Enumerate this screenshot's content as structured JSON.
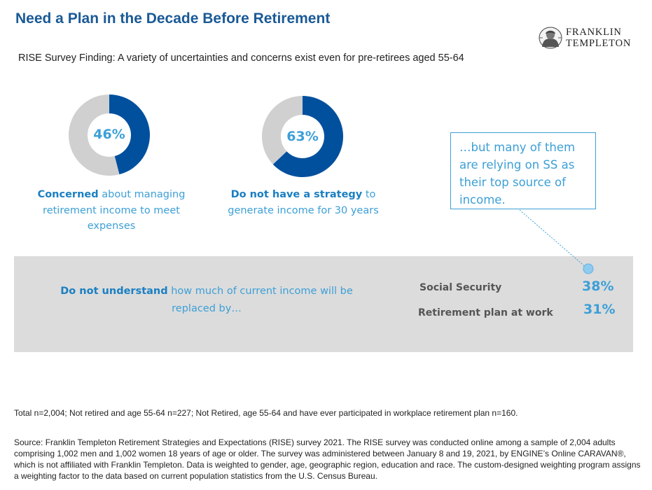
{
  "title": "Need a Plan in the Decade Before Retirement",
  "logo": {
    "line1": "FRANKLIN",
    "line2": "TEMPLETON",
    "icon": "portrait-seal-icon"
  },
  "subtitle": "RISE Survey Finding: A variety of uncertainties and concerns exist even for pre-retirees aged 55-64",
  "colors": {
    "title": "#1a5a96",
    "donut_fill": "#00509e",
    "donut_rest": "#d0d0d0",
    "accent": "#3c9fd7",
    "panel": "#dcdcdc"
  },
  "chart_data": [
    {
      "type": "pie",
      "subtype": "donut",
      "values": [
        46,
        54
      ],
      "highlight_label": "46%",
      "caption_bold": "Concerned",
      "caption_rest": " about managing retirement income to meet expenses"
    },
    {
      "type": "pie",
      "subtype": "donut",
      "values": [
        63,
        37
      ],
      "highlight_label": "63%",
      "caption_bold": "Do not have a strategy",
      "caption_rest": " to generate income for 30 years"
    },
    {
      "type": "table",
      "intro_bold": "Do not understand",
      "intro_rest": " how much of current income will be replaced by…",
      "categories": [
        "Social Security",
        "Retirement plan at work"
      ],
      "values": [
        38,
        31
      ],
      "value_labels": [
        "38%",
        "31%"
      ]
    }
  ],
  "callout": {
    "text": "…but many of them are relying on SS as their top source of income."
  },
  "footnote": "Total n=2,004; Not retired and age 55-64 n=227; Not Retired, age 55-64 and have ever participated in workplace retirement plan n=160.",
  "source": "Source: Franklin Templeton Retirement Strategies and Expectations (RISE) survey 2021. The RISE survey was conducted online among a sample of 2,004 adults comprising 1,002 men and 1,002 women 18 years of age or older. The survey was administered between January 8 and 19, 2021, by ENGINE’s Online CARAVAN®, which is not affiliated with Franklin Templeton. Data is weighted to gender, age, geographic region, education and race. The custom-designed weighting program assigns a weighting factor to the data based on current population statistics from the U.S. Census Bureau."
}
